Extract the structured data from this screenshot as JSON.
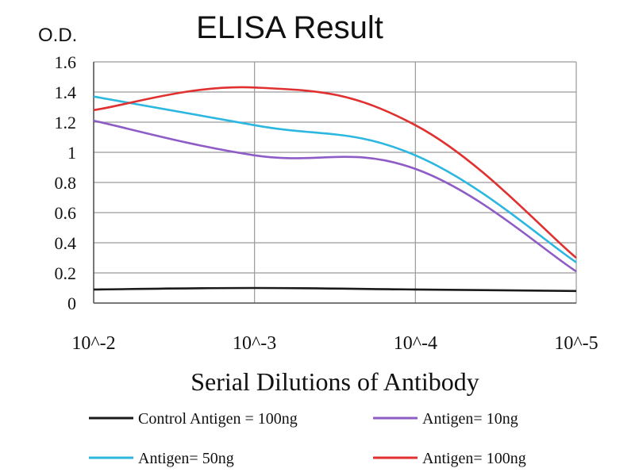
{
  "chart_data": {
    "type": "line",
    "title": "ELISA Result",
    "ylabel": "O.D.",
    "xlabel": "Serial Dilutions of Antibody",
    "categories": [
      "10^-2",
      "10^-3",
      "10^-4",
      "10^-5"
    ],
    "ylim": [
      0,
      1.6
    ],
    "yticks": [
      "0",
      "0.2",
      "0.4",
      "0.6",
      "0.8",
      "1",
      "1.2",
      "1.4",
      "1.6"
    ],
    "grid": true,
    "legend_position": "bottom",
    "series": [
      {
        "name": "Control Antigen = 100ng",
        "color": "#1a1a1a",
        "values": [
          0.09,
          0.1,
          0.09,
          0.08
        ]
      },
      {
        "name": "Antigen= 10ng",
        "color": "#8e5cc6",
        "values": [
          1.21,
          0.98,
          0.89,
          0.21
        ]
      },
      {
        "name": "Antigen= 50ng",
        "color": "#2cb7e0",
        "values": [
          1.37,
          1.18,
          0.98,
          0.27
        ]
      },
      {
        "name": "Antigen= 100ng",
        "color": "#e03030",
        "values": [
          1.28,
          1.43,
          1.18,
          0.3
        ]
      }
    ]
  }
}
